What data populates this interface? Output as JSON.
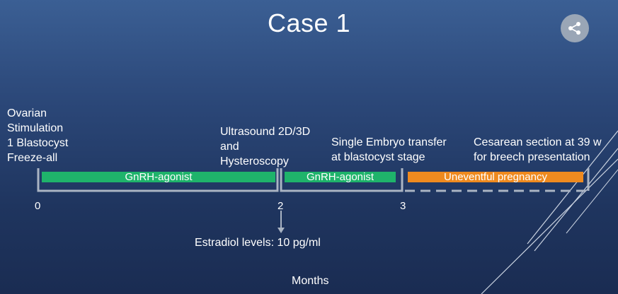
{
  "slide": {
    "title": "Case 1",
    "share_icon": "share-icon"
  },
  "timeline": {
    "events": {
      "start": [
        "Ovarian",
        "Stimulation",
        "1 Blastocyst",
        "Freeze-all"
      ],
      "month2": [
        "Ultrasound 2D/3D",
        "and",
        "Hysteroscopy"
      ],
      "month3": [
        "Single Embryo transfer",
        "at blastocyst stage"
      ],
      "end": [
        "Cesarean section at 39 w",
        "for breech presentation"
      ]
    },
    "bars": [
      {
        "label": "GnRH-agonist",
        "color": "#1fb36b"
      },
      {
        "label": "GnRH-agonist",
        "color": "#1fb36b"
      },
      {
        "label": "Uneventful pregnancy",
        "color": "#ef8a1f"
      }
    ],
    "ticks": [
      "0",
      "2",
      "3"
    ],
    "note": "Estradiol levels: 10 pg/ml",
    "axis_label": "Months"
  }
}
